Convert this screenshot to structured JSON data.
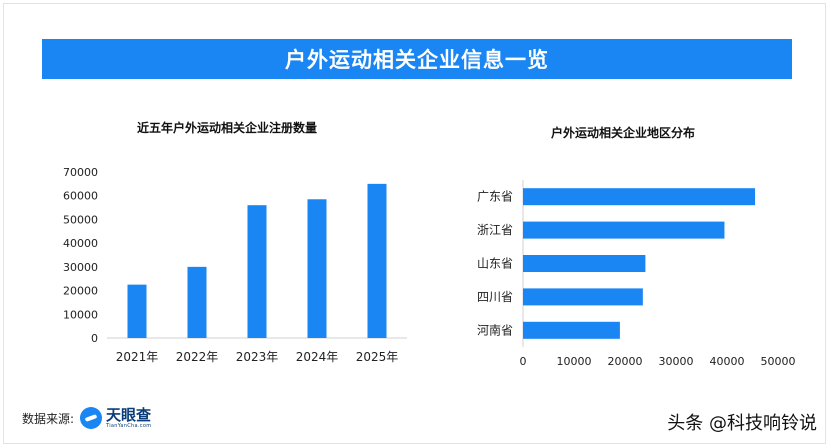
{
  "banner": {
    "title": "户外运动相关企业信息一览"
  },
  "chart_data": [
    {
      "type": "bar",
      "title": "近五年户外运动相关企业注册数量",
      "categories": [
        "2021年",
        "2022年",
        "2023年",
        "2024年",
        "2025年"
      ],
      "values": [
        22500,
        30000,
        56000,
        58500,
        65000
      ],
      "ylim": [
        0,
        70000
      ],
      "yticks": [
        "0",
        "10000",
        "20000",
        "30000",
        "40000",
        "50000",
        "60000",
        "70000"
      ],
      "xlabel": "",
      "ylabel": "",
      "grid": false,
      "color": "#1a86f3"
    },
    {
      "type": "bar",
      "orientation": "horizontal",
      "title": "户外运动相关企业地区分布",
      "categories": [
        "广东省",
        "浙江省",
        "山东省",
        "四川省",
        "河南省"
      ],
      "values": [
        45500,
        39500,
        24000,
        23500,
        19000
      ],
      "xlim": [
        0,
        50000
      ],
      "xticks": [
        "0",
        "10000",
        "20000",
        "30000",
        "40000",
        "50000"
      ],
      "xlabel": "",
      "ylabel": "",
      "grid": false,
      "color": "#1a86f3"
    }
  ],
  "footer": {
    "source_label": "数据来源:",
    "logo_name": "天眼查",
    "logo_sub": "TianYanCha.com",
    "watermark": "头条 @科技响铃说"
  }
}
